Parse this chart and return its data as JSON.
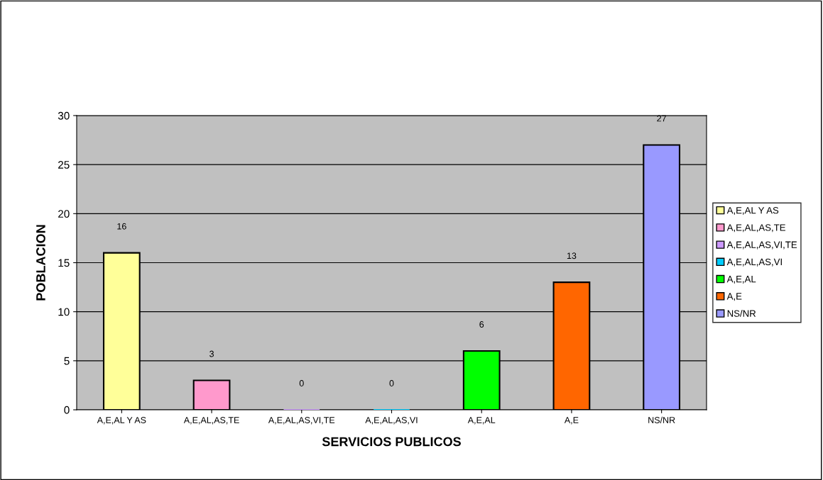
{
  "chart_data": {
    "type": "bar",
    "xlabel": "SERVICIOS PUBLICOS",
    "ylabel": "POBLACION",
    "categories": [
      "A,E,AL Y AS",
      "A,E,AL,AS,TE",
      "A,E,AL,AS,VI,TE",
      "A,E,AL,AS,VI",
      "A,E,AL",
      "A,E",
      "NS/NR"
    ],
    "series": [
      {
        "name": "A,E,AL Y AS",
        "color": "#ffff99",
        "values": [
          16,
          null,
          null,
          null,
          null,
          null,
          null
        ]
      },
      {
        "name": "A,E,AL,AS,TE",
        "color": "#ff99cc",
        "values": [
          null,
          3,
          null,
          null,
          null,
          null,
          null
        ]
      },
      {
        "name": "A,E,AL,AS,VI,TE",
        "color": "#cc99ff",
        "values": [
          null,
          null,
          0,
          null,
          null,
          null,
          null
        ]
      },
      {
        "name": "A,E,AL,AS,VI",
        "color": "#00ccff",
        "values": [
          null,
          null,
          null,
          0,
          null,
          null,
          null
        ]
      },
      {
        "name": "A,E,AL",
        "color": "#00ff00",
        "values": [
          null,
          null,
          null,
          null,
          6,
          null,
          null
        ]
      },
      {
        "name": "A,E",
        "color": "#ff6600",
        "values": [
          null,
          null,
          null,
          null,
          null,
          13,
          null
        ]
      },
      {
        "name": "NS/NR",
        "color": "#9999ff",
        "values": [
          null,
          null,
          null,
          null,
          null,
          null,
          27
        ]
      }
    ],
    "ylim": [
      0,
      30
    ],
    "yticks": [
      0,
      5,
      10,
      15,
      20,
      25,
      30
    ],
    "grid": "y",
    "legend": "right",
    "data_labels": true
  }
}
